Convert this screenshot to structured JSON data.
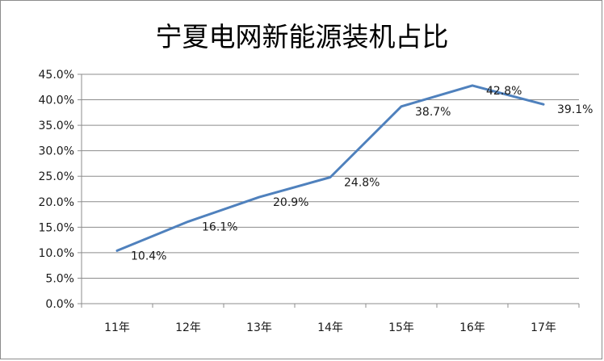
{
  "chart_data": {
    "type": "line",
    "title": "宁夏电网新能源装机占比",
    "xlabel": "",
    "ylabel": "",
    "categories": [
      "11年",
      "12年",
      "13年",
      "14年",
      "15年",
      "16年",
      "17年"
    ],
    "series": [
      {
        "values": [
          10.4,
          16.1,
          20.9,
          24.8,
          38.7,
          42.8,
          39.1
        ],
        "labels": [
          "10.4%",
          "16.1%",
          "20.9%",
          "24.8%",
          "38.7%",
          "42.8%",
          "39.1%"
        ]
      }
    ],
    "ylim": [
      0,
      45
    ],
    "ystep": 5,
    "ytick_labels": [
      "0.0%",
      "5.0%",
      "10.0%",
      "15.0%",
      "20.0%",
      "25.0%",
      "30.0%",
      "35.0%",
      "40.0%",
      "45.0%"
    ],
    "grid": true,
    "legend": "none",
    "colors": {
      "line": "#4f81bd",
      "grid": "#8c8c8c",
      "axis": "#8c8c8c"
    }
  }
}
